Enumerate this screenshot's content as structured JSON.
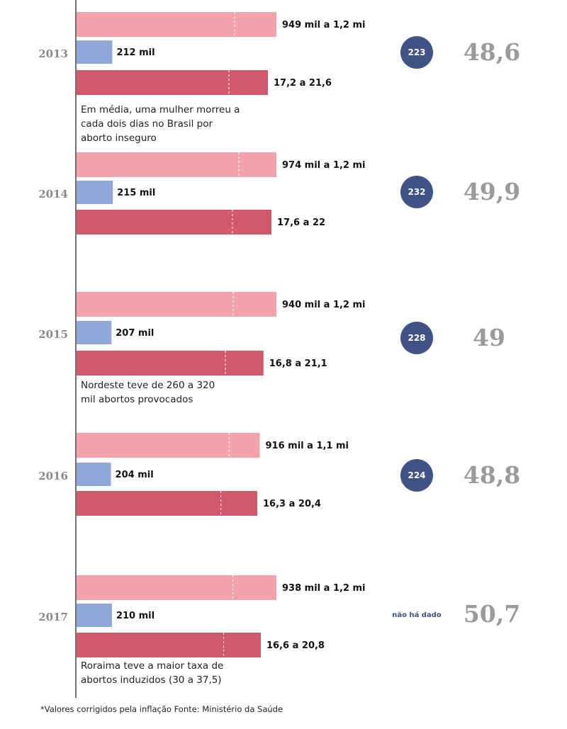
{
  "chart_data": {
    "type": "bar",
    "orientation": "horizontal",
    "categories": [
      "2013",
      "2014",
      "2015",
      "2016",
      "2017"
    ],
    "series": [
      {
        "color": "#f4a3ad",
        "values": [
          [
            949,
            1200
          ],
          [
            974,
            1200
          ],
          [
            940,
            1200
          ],
          [
            916,
            1100
          ],
          [
            938,
            1200
          ]
        ],
        "labels": [
          "949 mil a 1,2 mi",
          "974 mil a 1,2 mi",
          "940 mil a 1,2 mi",
          "916 mil a 1,1 mi",
          "938 mil a 1,2 mi"
        ]
      },
      {
        "color": "#8fa8d8",
        "values": [
          212,
          215,
          207,
          204,
          210
        ],
        "labels": [
          "212 mil",
          "215 mil",
          "207 mil",
          "204 mil",
          "210 mil"
        ]
      },
      {
        "color": "#d2596b",
        "values": [
          [
            17.2,
            21.6
          ],
          [
            17.6,
            22
          ],
          [
            16.8,
            21.1
          ],
          [
            16.3,
            20.4
          ],
          [
            16.6,
            20.8
          ]
        ],
        "labels": [
          "17,2 a 21,6",
          "17,6 a 22",
          "16,8 a 21,1",
          "16,3 a 20,4",
          "16,6 a 20,8"
        ]
      }
    ],
    "deaths": [
      "223",
      "232",
      "228",
      "224",
      "não há dado"
    ],
    "rates": [
      "48,6",
      "49,9",
      "49",
      "48,8",
      "50,7"
    ],
    "annotations": [
      {
        "year": "2013",
        "lines": [
          "Em média, uma mulher morreu a",
          "cada dois dias no Brasil por",
          "aborto inseguro"
        ]
      },
      {
        "year": "2015",
        "lines": [
          "Nordeste teve de 260 a 320",
          "mil abortos provocados"
        ]
      },
      {
        "year": "2017",
        "lines": [
          "Roraima teve a maior taxa de",
          "abortos induzidos (30 a 37,5)"
        ]
      }
    ],
    "footnote": "*Valores corrigidos pela inflação Fonte: Ministério da Saúde",
    "colors": {
      "axis": "#444444",
      "circle": "#3f5385",
      "year": "#8a8a8a",
      "rate": "#9a9a9a"
    }
  }
}
